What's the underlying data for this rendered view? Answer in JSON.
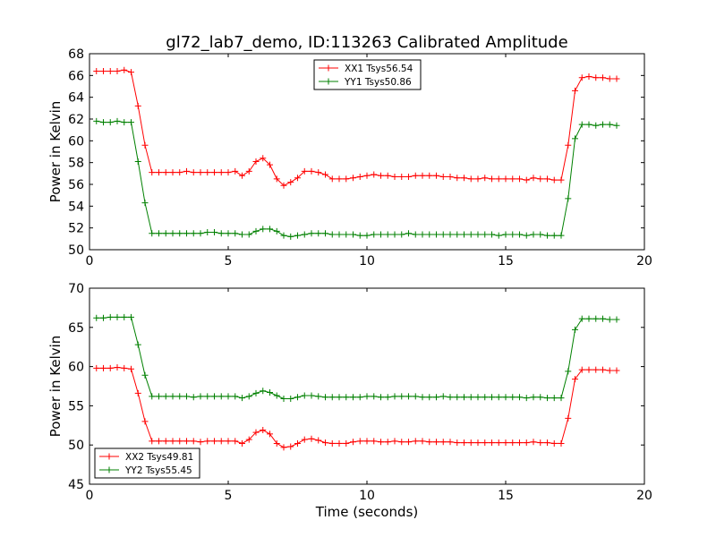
{
  "figure_title": "gl72_lab7_demo, ID:113263 Calibrated Amplitude",
  "colors": {
    "red": "#ff0000",
    "green": "#008000",
    "axis": "#000000"
  },
  "chart_data": [
    {
      "type": "line",
      "title": "gl72_lab7_demo, ID:113263 Calibrated Amplitude",
      "xlabel": "",
      "ylabel": "Power in Kelvin",
      "xlim": [
        0,
        20
      ],
      "ylim": [
        50,
        68
      ],
      "xticks": [
        0,
        5,
        10,
        15,
        20
      ],
      "yticks": [
        50,
        52,
        54,
        56,
        58,
        60,
        62,
        64,
        66,
        68
      ],
      "grid": false,
      "legend_position": "top-center",
      "x": [
        0.25,
        0.5,
        0.75,
        1.0,
        1.25,
        1.5,
        1.75,
        2.0,
        2.25,
        2.5,
        2.75,
        3.0,
        3.25,
        3.5,
        3.75,
        4.0,
        4.25,
        4.5,
        4.75,
        5.0,
        5.25,
        5.5,
        5.75,
        6.0,
        6.25,
        6.5,
        6.75,
        7.0,
        7.25,
        7.5,
        7.75,
        8.0,
        8.25,
        8.5,
        8.75,
        9.0,
        9.25,
        9.5,
        9.75,
        10.0,
        10.25,
        10.5,
        10.75,
        11.0,
        11.25,
        11.5,
        11.75,
        12.0,
        12.25,
        12.5,
        12.75,
        13.0,
        13.25,
        13.5,
        13.75,
        14.0,
        14.25,
        14.5,
        14.75,
        15.0,
        15.25,
        15.5,
        15.75,
        16.0,
        16.25,
        16.5,
        16.75,
        17.0,
        17.25,
        17.5,
        17.75,
        18.0,
        18.25,
        18.5,
        18.75,
        19.0
      ],
      "series": [
        {
          "name": "XX1 Tsys56.54",
          "color": "#ff0000",
          "values": [
            66.4,
            66.4,
            66.4,
            66.4,
            66.5,
            66.3,
            63.2,
            59.6,
            57.1,
            57.1,
            57.1,
            57.1,
            57.1,
            57.2,
            57.1,
            57.1,
            57.1,
            57.1,
            57.1,
            57.1,
            57.2,
            56.8,
            57.2,
            58.1,
            58.4,
            57.8,
            56.5,
            55.9,
            56.2,
            56.6,
            57.2,
            57.2,
            57.1,
            56.9,
            56.5,
            56.5,
            56.5,
            56.6,
            56.7,
            56.8,
            56.9,
            56.8,
            56.8,
            56.7,
            56.7,
            56.7,
            56.8,
            56.8,
            56.8,
            56.8,
            56.7,
            56.7,
            56.6,
            56.6,
            56.5,
            56.5,
            56.6,
            56.5,
            56.5,
            56.5,
            56.5,
            56.5,
            56.4,
            56.6,
            56.5,
            56.5,
            56.4,
            56.4,
            59.6,
            64.6,
            65.8,
            65.9,
            65.8,
            65.8,
            65.7,
            65.7
          ]
        },
        {
          "name": "YY1 Tsys50.86",
          "color": "#008000",
          "values": [
            61.8,
            61.7,
            61.7,
            61.8,
            61.7,
            61.7,
            58.1,
            54.3,
            51.5,
            51.5,
            51.5,
            51.5,
            51.5,
            51.5,
            51.5,
            51.5,
            51.6,
            51.6,
            51.5,
            51.5,
            51.5,
            51.4,
            51.4,
            51.7,
            51.9,
            51.9,
            51.7,
            51.3,
            51.2,
            51.3,
            51.4,
            51.5,
            51.5,
            51.5,
            51.4,
            51.4,
            51.4,
            51.4,
            51.3,
            51.3,
            51.4,
            51.4,
            51.4,
            51.4,
            51.4,
            51.5,
            51.4,
            51.4,
            51.4,
            51.4,
            51.4,
            51.4,
            51.4,
            51.4,
            51.4,
            51.4,
            51.4,
            51.4,
            51.3,
            51.4,
            51.4,
            51.4,
            51.3,
            51.4,
            51.4,
            51.3,
            51.3,
            51.3,
            54.7,
            60.2,
            61.5,
            61.5,
            61.4,
            61.5,
            61.5,
            61.4
          ]
        }
      ]
    },
    {
      "type": "line",
      "title": "",
      "xlabel": "Time (seconds)",
      "ylabel": "Power in Kelvin",
      "xlim": [
        0,
        20
      ],
      "ylim": [
        45,
        70
      ],
      "xticks": [
        0,
        5,
        10,
        15,
        20
      ],
      "yticks": [
        45,
        50,
        55,
        60,
        65,
        70
      ],
      "grid": false,
      "legend_position": "bottom-left",
      "x": [
        0.25,
        0.5,
        0.75,
        1.0,
        1.25,
        1.5,
        1.75,
        2.0,
        2.25,
        2.5,
        2.75,
        3.0,
        3.25,
        3.5,
        3.75,
        4.0,
        4.25,
        4.5,
        4.75,
        5.0,
        5.25,
        5.5,
        5.75,
        6.0,
        6.25,
        6.5,
        6.75,
        7.0,
        7.25,
        7.5,
        7.75,
        8.0,
        8.25,
        8.5,
        8.75,
        9.0,
        9.25,
        9.5,
        9.75,
        10.0,
        10.25,
        10.5,
        10.75,
        11.0,
        11.25,
        11.5,
        11.75,
        12.0,
        12.25,
        12.5,
        12.75,
        13.0,
        13.25,
        13.5,
        13.75,
        14.0,
        14.25,
        14.5,
        14.75,
        15.0,
        15.25,
        15.5,
        15.75,
        16.0,
        16.25,
        16.5,
        16.75,
        17.0,
        17.25,
        17.5,
        17.75,
        18.0,
        18.25,
        18.5,
        18.75,
        19.0
      ],
      "series": [
        {
          "name": "XX2 Tsys49.81",
          "color": "#ff0000",
          "values": [
            59.8,
            59.8,
            59.8,
            59.9,
            59.8,
            59.7,
            56.6,
            53.0,
            50.5,
            50.5,
            50.5,
            50.5,
            50.5,
            50.5,
            50.5,
            50.4,
            50.5,
            50.5,
            50.5,
            50.5,
            50.5,
            50.2,
            50.7,
            51.6,
            51.9,
            51.4,
            50.2,
            49.7,
            49.8,
            50.2,
            50.7,
            50.8,
            50.6,
            50.3,
            50.2,
            50.2,
            50.2,
            50.4,
            50.5,
            50.5,
            50.5,
            50.4,
            50.4,
            50.5,
            50.4,
            50.4,
            50.5,
            50.5,
            50.4,
            50.4,
            50.4,
            50.4,
            50.3,
            50.3,
            50.3,
            50.3,
            50.3,
            50.3,
            50.3,
            50.3,
            50.3,
            50.3,
            50.3,
            50.4,
            50.3,
            50.3,
            50.2,
            50.2,
            53.4,
            58.4,
            59.6,
            59.6,
            59.6,
            59.6,
            59.5,
            59.5
          ]
        },
        {
          "name": "YY2 Tsys55.45",
          "color": "#008000",
          "values": [
            66.2,
            66.2,
            66.3,
            66.3,
            66.3,
            66.3,
            62.8,
            58.9,
            56.2,
            56.2,
            56.2,
            56.2,
            56.2,
            56.2,
            56.1,
            56.2,
            56.2,
            56.2,
            56.2,
            56.2,
            56.2,
            56.0,
            56.2,
            56.6,
            56.9,
            56.7,
            56.3,
            55.9,
            55.9,
            56.1,
            56.3,
            56.3,
            56.2,
            56.1,
            56.1,
            56.1,
            56.1,
            56.1,
            56.1,
            56.2,
            56.2,
            56.1,
            56.1,
            56.2,
            56.2,
            56.2,
            56.2,
            56.1,
            56.1,
            56.1,
            56.2,
            56.1,
            56.1,
            56.1,
            56.1,
            56.1,
            56.1,
            56.1,
            56.1,
            56.1,
            56.1,
            56.1,
            56.0,
            56.1,
            56.1,
            56.0,
            56.0,
            56.0,
            59.4,
            64.7,
            66.1,
            66.1,
            66.1,
            66.1,
            66.0,
            66.0
          ]
        }
      ]
    }
  ]
}
